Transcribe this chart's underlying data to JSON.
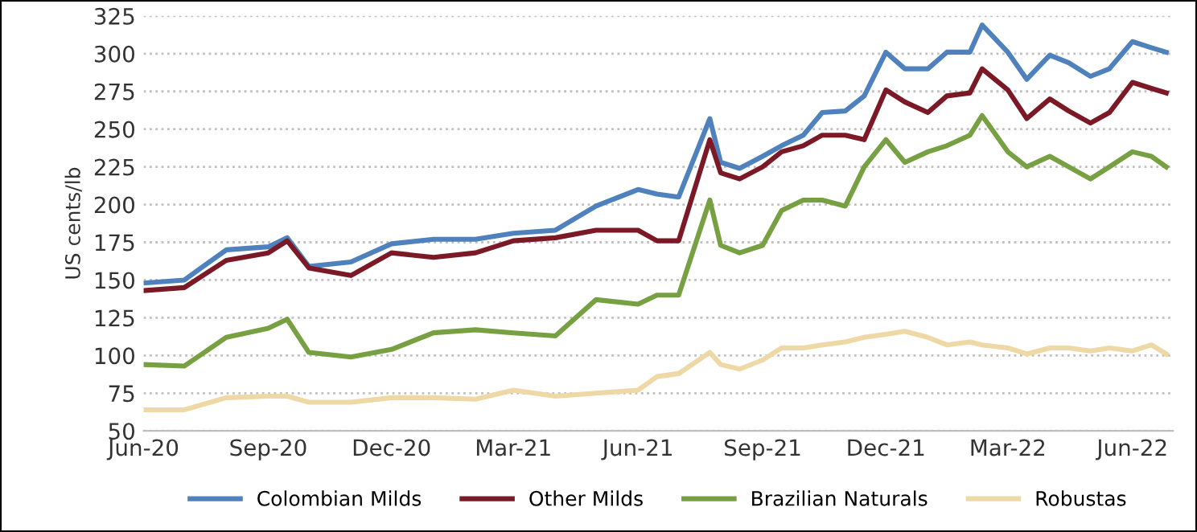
{
  "chart_data": {
    "type": "line",
    "ylabel": "US cents/lb",
    "x": [
      "2020-06-01",
      "2020-07-01",
      "2020-08-01",
      "2020-09-01",
      "2020-09-15",
      "2020-10-01",
      "2020-11-01",
      "2020-12-01",
      "2021-01-01",
      "2021-02-01",
      "2021-03-01",
      "2021-04-01",
      "2021-05-01",
      "2021-06-01",
      "2021-06-15",
      "2021-07-01",
      "2021-07-24",
      "2021-08-01",
      "2021-08-15",
      "2021-09-01",
      "2021-09-15",
      "2021-10-01",
      "2021-10-15",
      "2021-11-01",
      "2021-11-15",
      "2021-12-01",
      "2021-12-15",
      "2022-01-01",
      "2022-01-15",
      "2022-02-01",
      "2022-02-10",
      "2022-03-01",
      "2022-03-15",
      "2022-04-01",
      "2022-04-15",
      "2022-05-01",
      "2022-05-15",
      "2022-06-01",
      "2022-06-15",
      "2022-06-26"
    ],
    "series": [
      {
        "name": "Colombian Milds",
        "color": "#4f81bd",
        "values": [
          148,
          150,
          170,
          172,
          178,
          159,
          162,
          174,
          177,
          177,
          181,
          183,
          199,
          210,
          207,
          205,
          257,
          228,
          224,
          232,
          239,
          246,
          261,
          262,
          272,
          301,
          290,
          290,
          301,
          301,
          319,
          301,
          283,
          299,
          294,
          285,
          290,
          308,
          304,
          301
        ]
      },
      {
        "name": "Other Milds",
        "color": "#7b1a26",
        "values": [
          143,
          145,
          163,
          168,
          176,
          158,
          153,
          168,
          165,
          168,
          176,
          178,
          183,
          183,
          176,
          176,
          243,
          221,
          217,
          225,
          235,
          239,
          246,
          246,
          243,
          276,
          268,
          261,
          272,
          274,
          290,
          276,
          257,
          270,
          262,
          254,
          261,
          281,
          277,
          274
        ]
      },
      {
        "name": "Brazilian Naturals",
        "color": "#77a043",
        "values": [
          94,
          93,
          112,
          118,
          124,
          102,
          99,
          104,
          115,
          117,
          115,
          113,
          137,
          134,
          140,
          140,
          203,
          173,
          168,
          173,
          196,
          203,
          203,
          199,
          225,
          243,
          228,
          235,
          239,
          246,
          259,
          235,
          225,
          232,
          225,
          217,
          225,
          235,
          232,
          225
        ]
      },
      {
        "name": "Robustas",
        "color": "#eed8a6",
        "values": [
          64,
          64,
          72,
          73,
          73,
          69,
          69,
          72,
          72,
          71,
          77,
          73,
          75,
          77,
          86,
          88,
          102,
          94,
          91,
          97,
          105,
          105,
          107,
          109,
          112,
          114,
          116,
          112,
          107,
          109,
          107,
          105,
          101,
          105,
          105,
          103,
          105,
          103,
          107,
          101
        ]
      }
    ],
    "xlim": [
      "2020-06-01",
      "2022-07-01"
    ],
    "xticks": [
      {
        "value": "2020-06-01",
        "label": "Jun-20"
      },
      {
        "value": "2020-09-01",
        "label": "Sep-20"
      },
      {
        "value": "2020-12-01",
        "label": "Dec-20"
      },
      {
        "value": "2021-03-01",
        "label": "Mar-21"
      },
      {
        "value": "2021-06-01",
        "label": "Jun-21"
      },
      {
        "value": "2021-09-01",
        "label": "Sep-21"
      },
      {
        "value": "2021-12-01",
        "label": "Dec-21"
      },
      {
        "value": "2022-03-01",
        "label": "Mar-22"
      },
      {
        "value": "2022-06-01",
        "label": "Jun-22"
      }
    ],
    "ylim": [
      50,
      325
    ],
    "yticks": [
      50,
      75,
      100,
      125,
      150,
      175,
      200,
      225,
      250,
      275,
      300,
      325
    ],
    "grid": "y",
    "legend": "bottom",
    "line_style": "solid",
    "marker": "none"
  }
}
